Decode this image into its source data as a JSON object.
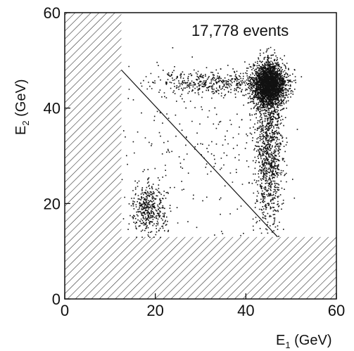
{
  "chart_data": {
    "type": "scatter",
    "title": "",
    "annotation": "17,778 events",
    "xlabel": {
      "base": "E",
      "sub": "1",
      "unit": " (GeV)"
    },
    "ylabel": {
      "base": "E",
      "sub": "2",
      "unit": " (GeV)"
    },
    "xlim": [
      0,
      60
    ],
    "ylim": [
      0,
      60
    ],
    "x_ticks": [
      0,
      20,
      40,
      60
    ],
    "y_ticks": [
      0,
      20,
      40,
      60
    ],
    "x_tick_labels": [
      "0",
      "20",
      "40",
      "60"
    ],
    "y_tick_labels": [
      "0",
      "20",
      "40",
      "60"
    ],
    "grid": false,
    "excluded_region": {
      "e1_below": 12.5,
      "e2_below": 13
    },
    "cut_line": {
      "from": [
        12.5,
        48
      ],
      "to": [
        47,
        13
      ]
    },
    "clusters": [
      {
        "label": "high-energy peak",
        "center": [
          45,
          45
        ],
        "spread": [
          1.8,
          2.2
        ],
        "density": "very high"
      },
      {
        "label": "E1 band",
        "center": [
          45,
          32
        ],
        "spread": [
          1.5,
          8
        ],
        "density": "high"
      },
      {
        "label": "E2 band",
        "center": [
          33,
          45.5
        ],
        "spread": [
          7,
          1.2
        ],
        "density": "medium"
      },
      {
        "label": "low-energy blob",
        "center": [
          18.5,
          19
        ],
        "spread": [
          2,
          2.5
        ],
        "density": "medium"
      },
      {
        "label": "diffuse",
        "center": [
          32,
          32
        ],
        "spread": [
          10,
          10
        ],
        "density": "low"
      }
    ]
  }
}
